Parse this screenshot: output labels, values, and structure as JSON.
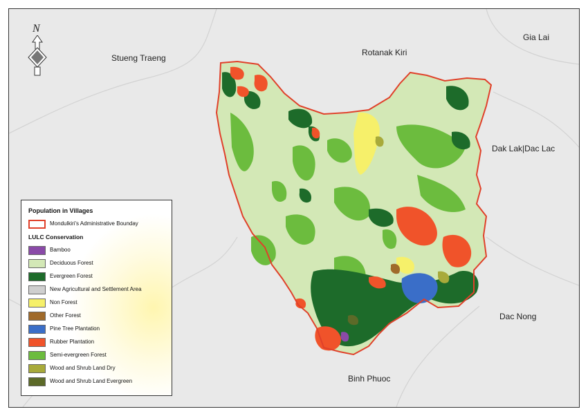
{
  "places": {
    "stueng_traeng": "Stueng Traeng",
    "rotanak_kiri": "Rotanak Kiri",
    "gia_lai": "Gia Lai",
    "dak_lak": "Dak Lak|Dac Lac",
    "dac_nong": "Dac Nong",
    "binh_phuoc": "Binh Phuoc"
  },
  "north_arrow": {
    "label": "N",
    "icon": "north-arrow-icon"
  },
  "legend": {
    "title": "Population in Villages",
    "boundary_label": "Mondulkiri's Administrative Bounday",
    "boundary_color": "#e0402a",
    "subtitle": "LULC Conservation",
    "items": [
      {
        "label": "Bamboo",
        "color": "#8a4aa8"
      },
      {
        "label": "Deciduous Forest",
        "color": "#d3e8b6"
      },
      {
        "label": "Evergreen Forest",
        "color": "#1d6b2a"
      },
      {
        "label": "New Agricultural and Settlement Area",
        "color": "#cfcfcf"
      },
      {
        "label": "Non Forest",
        "color": "#f6f06a"
      },
      {
        "label": "Other Forest",
        "color": "#a06a2a"
      },
      {
        "label": "Pine Tree Plantation",
        "color": "#3a6ec8"
      },
      {
        "label": "Rubber Plantation",
        "color": "#f0532a"
      },
      {
        "label": "Semi-evergreen Forest",
        "color": "#6cbc3e"
      },
      {
        "label": "Wood and Shrub Land Dry",
        "color": "#a8aa3a"
      },
      {
        "label": "Wood and Shrub Land Evergreen",
        "color": "#5c6a28"
      }
    ]
  }
}
